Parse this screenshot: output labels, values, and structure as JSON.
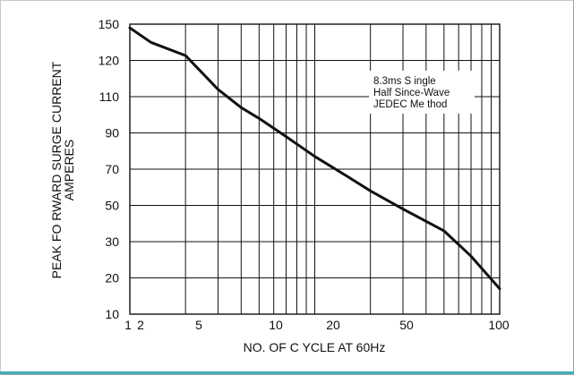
{
  "chart_data": {
    "type": "line",
    "xscale": "log",
    "xlim": [
      1,
      100
    ],
    "ylim": [
      10,
      150
    ],
    "grid": true,
    "xlabel": "NO. OF C YCLE AT 60Hz",
    "ylabel_lines": [
      "PEAK FO RWARD SURGE CURRENT",
      "AMPERES"
    ],
    "x_tick_labels": [
      "1",
      "2",
      "5",
      "10",
      "20",
      "50",
      "100"
    ],
    "y_tick_labels": [
      "150",
      "120",
      "110",
      "90",
      "70",
      "50",
      "30",
      "20",
      "10"
    ],
    "annotation_lines": [
      "8.3ms S ingle",
      "Half Since-Wave",
      "JEDEC Me thod"
    ],
    "series": [
      {
        "x": [
          1,
          1.3,
          2,
          3,
          4,
          5,
          7,
          10,
          15,
          20,
          30,
          50,
          70,
          100
        ],
        "y": [
          147,
          135,
          124,
          112,
          104,
          98,
          88,
          77,
          66,
          58,
          48,
          36,
          26,
          17
        ]
      }
    ]
  }
}
